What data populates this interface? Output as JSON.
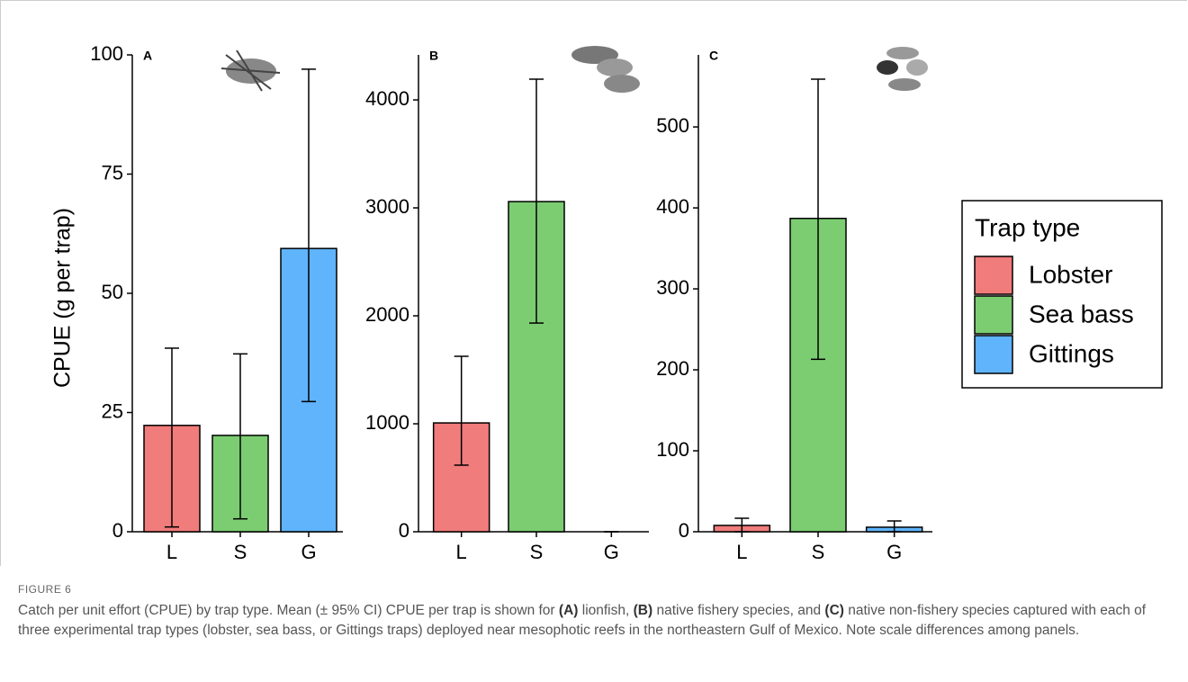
{
  "chart_data": [
    {
      "type": "bar",
      "panel_label": "A",
      "y_label": "CPUE (g per trap)",
      "categories": [
        "L",
        "S",
        "G"
      ],
      "values": [
        22.3,
        20.2,
        59.4
      ],
      "ci_upper": [
        38.5,
        37.3,
        97
      ],
      "ci_lower": [
        1,
        2.7,
        27.3
      ],
      "ylim": [
        0,
        100
      ],
      "yticks": [
        0,
        25,
        50,
        75,
        100
      ]
    },
    {
      "type": "bar",
      "panel_label": "B",
      "categories": [
        "L",
        "S",
        "G"
      ],
      "values": [
        1008,
        3058,
        0
      ],
      "ci_upper": [
        1625,
        4192,
        0
      ],
      "ci_lower": [
        617,
        1933,
        0
      ],
      "ylim": [
        0,
        4417
      ],
      "yticks": [
        0,
        1000,
        2000,
        3000,
        4000
      ]
    },
    {
      "type": "bar",
      "panel_label": "C",
      "categories": [
        "L",
        "S",
        "G"
      ],
      "values": [
        7.8,
        387,
        5.6
      ],
      "ci_upper": [
        16.7,
        559,
        13.3
      ],
      "ci_lower": [
        0,
        213,
        0
      ],
      "ylim": [
        0,
        589
      ],
      "yticks": [
        0,
        100,
        200,
        300,
        400,
        500
      ]
    }
  ],
  "legend": {
    "title": "Trap type",
    "entries": [
      {
        "name": "Lobster",
        "color": "#f07c7b"
      },
      {
        "name": "Sea bass",
        "color": "#7ccd72"
      },
      {
        "name": "Gittings",
        "color": "#5fb4fb"
      }
    ]
  },
  "figure_label": "FIGURE 6",
  "caption": [
    {
      "text": "Catch per unit effort (CPUE) by trap type. Mean (± 95% CI) CPUE per trap is shown for ",
      "bold": false
    },
    {
      "text": "(A)",
      "bold": true
    },
    {
      "text": " lionfish, ",
      "bold": false
    },
    {
      "text": "(B)",
      "bold": true
    },
    {
      "text": " native fishery species, and ",
      "bold": false
    },
    {
      "text": "(C)",
      "bold": true
    },
    {
      "text": " native non-fishery species captured with each of three experimental trap types (lobster, sea bass, or Gittings traps) deployed near mesophotic reefs in the northeastern Gulf of Mexico. Note scale differences among panels.",
      "bold": false
    }
  ]
}
